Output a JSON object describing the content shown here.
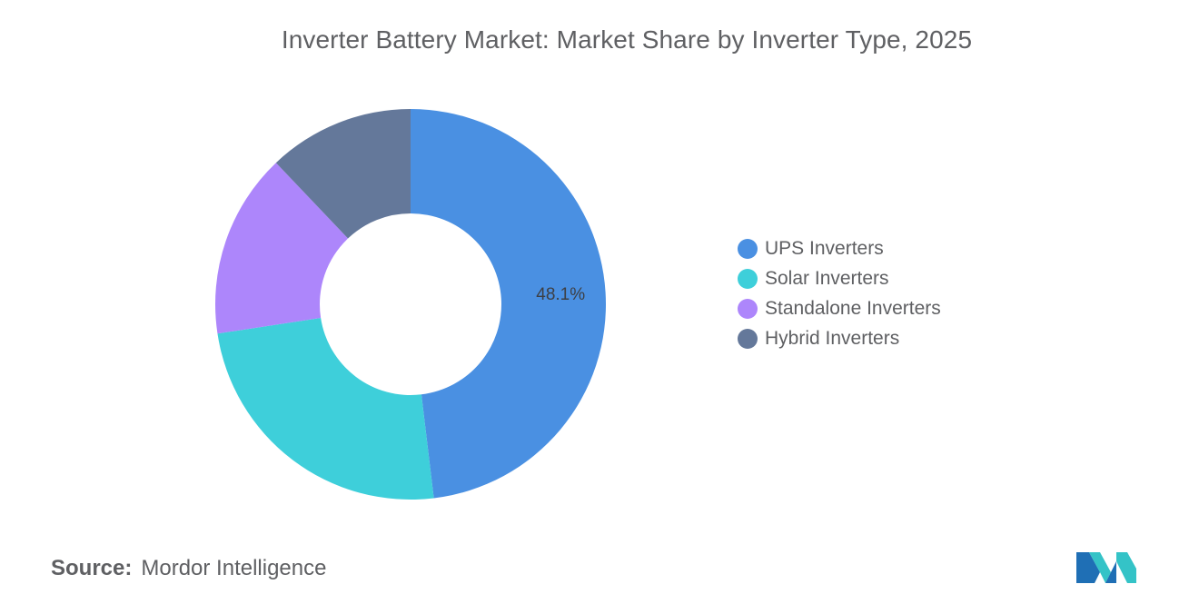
{
  "chart_data": {
    "type": "pie",
    "title": "Inverter Battery Market: Market Share by Inverter Type, 2025",
    "donut": true,
    "categories": [
      "UPS Inverters",
      "Solar Inverters",
      "Standalone Inverters",
      "Hybrid Inverters"
    ],
    "values": [
      48.1,
      24.5,
      15.3,
      12.1
    ],
    "colors": [
      "#4a90e2",
      "#3ecfda",
      "#ad86fb",
      "#64789a"
    ],
    "data_labels": [
      "48.1%",
      "",
      "",
      ""
    ],
    "legend_position": "right"
  },
  "footer": {
    "source_label": "Source:",
    "source_value": "Mordor Intelligence"
  },
  "logo": {
    "icon": "mordor-intelligence-logo-icon",
    "colors": [
      "#1f6fb5",
      "#34c3c7"
    ]
  }
}
